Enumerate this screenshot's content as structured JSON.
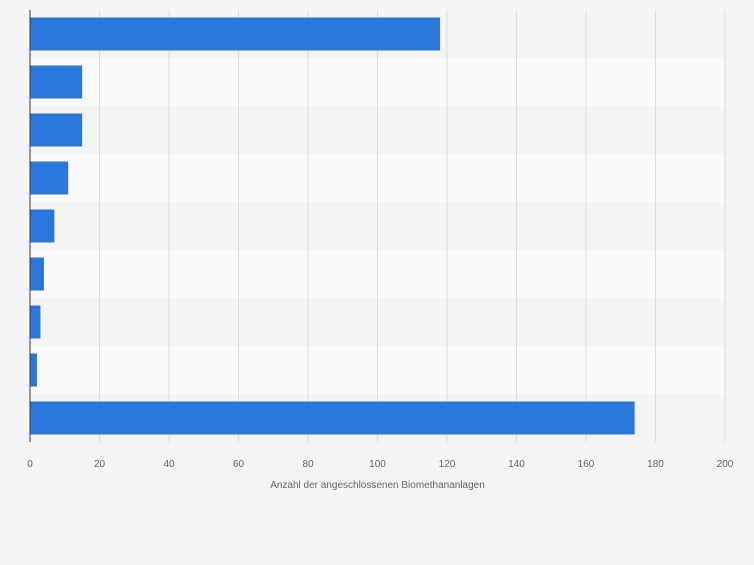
{
  "chart_data": {
    "type": "bar",
    "orientation": "horizontal",
    "title": "",
    "xlabel": "Anzahl der angeschlossenen Biomethananlagen",
    "ylabel": "",
    "xlim": [
      0,
      200
    ],
    "xticks": [
      0,
      20,
      40,
      60,
      80,
      100,
      120,
      140,
      160,
      180,
      200
    ],
    "categories": [
      "",
      "",
      "",
      "",
      "",
      "",
      "",
      "",
      ""
    ],
    "values": [
      118,
      15,
      15,
      11,
      7,
      4,
      3,
      2,
      174
    ],
    "bar_color": "#2a77dc",
    "row_colors": [
      "#f4f4f4",
      "#fafafa"
    ],
    "grid": true
  }
}
